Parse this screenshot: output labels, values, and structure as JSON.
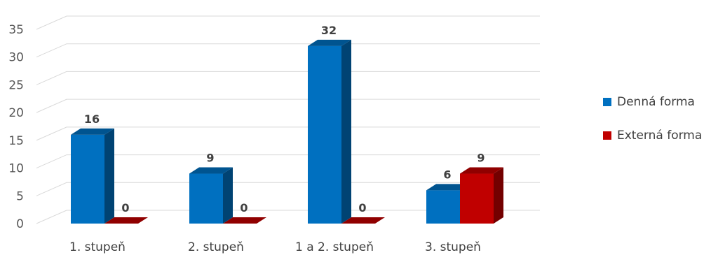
{
  "chart_data": {
    "type": "bar",
    "categories": [
      "1. stupeň",
      "2. stupeň",
      "1 a 2. stupeň",
      "3. stupeň"
    ],
    "series": [
      {
        "name": "Denná forma",
        "values": [
          16,
          9,
          32,
          6
        ],
        "color": "#0070C0"
      },
      {
        "name": "Externá forma",
        "values": [
          0,
          0,
          0,
          9
        ],
        "color": "#C00000"
      }
    ],
    "ylim": [
      0,
      35
    ],
    "yticks": [
      0,
      5,
      10,
      15,
      20,
      25,
      30,
      35
    ],
    "grid": true,
    "legend": "right",
    "title": "",
    "xlabel": "",
    "ylabel": ""
  }
}
